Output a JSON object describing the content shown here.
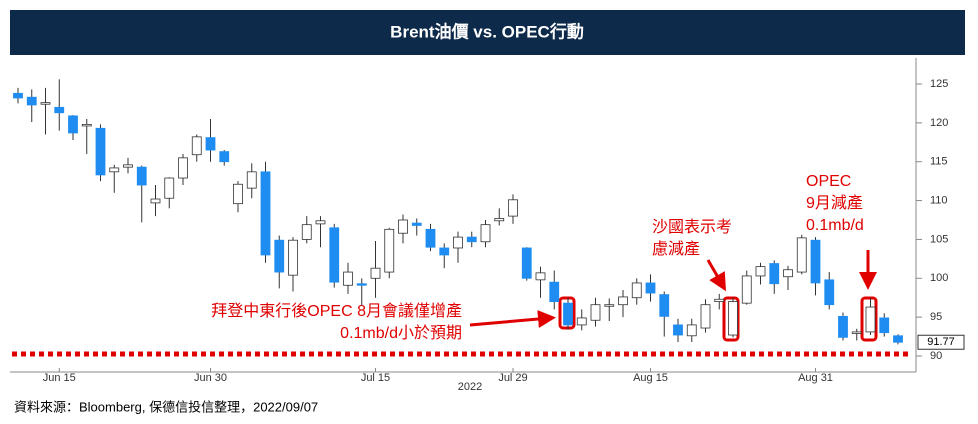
{
  "chart_data": {
    "type": "candlestick",
    "title": "Brent油價 vs. OPEC行動",
    "categories": [
      null,
      null,
      null,
      "Jun 15",
      null,
      null,
      null,
      null,
      null,
      null,
      null,
      null,
      null,
      null,
      "Jun 30",
      null,
      null,
      null,
      null,
      null,
      null,
      null,
      null,
      null,
      null,
      null,
      "Jul 15",
      null,
      null,
      null,
      null,
      null,
      null,
      null,
      null,
      null,
      "Jul 29",
      null,
      null,
      null,
      null,
      null,
      null,
      null,
      null,
      null,
      "Aug 15",
      null,
      null,
      null,
      null,
      null,
      null,
      null,
      null,
      null,
      null,
      null,
      "Aug 31",
      null,
      null,
      null,
      null,
      null,
      null
    ],
    "x_sublabel": "2022",
    "open": [
      123.8,
      123.3,
      122.4,
      122.0,
      120.9,
      119.6,
      119.3,
      113.7,
      114.3,
      114.3,
      109.7,
      110.3,
      112.9,
      115.9,
      118.1,
      116.3,
      109.6,
      111.6,
      113.7,
      104.9,
      100.4,
      105.0,
      107.0,
      106.5,
      99.1,
      99.3,
      100.0,
      100.8,
      105.8,
      107.1,
      106.3,
      103.9,
      103.9,
      105.3,
      104.7,
      107.4,
      108.0,
      103.9,
      99.8,
      99.5,
      96.8,
      94.0,
      94.6,
      96.4,
      96.6,
      97.5,
      99.4,
      97.9,
      94.0,
      92.6,
      93.6,
      97.0,
      92.7,
      96.8,
      100.3,
      101.9,
      100.2,
      100.8,
      104.9,
      99.8,
      95.1,
      92.9,
      93.1,
      94.9,
      92.6
    ],
    "high": [
      124.5,
      124.3,
      124.5,
      125.6,
      121.0,
      120.5,
      119.8,
      114.6,
      115.5,
      114.5,
      112.0,
      113.0,
      116.0,
      118.5,
      120.5,
      116.5,
      112.5,
      114.8,
      115.0,
      105.5,
      105.3,
      108.0,
      108.0,
      107.0,
      102.0,
      100.0,
      104.8,
      106.5,
      108.2,
      107.7,
      107.0,
      104.5,
      106.0,
      106.0,
      107.5,
      109.0,
      110.8,
      104.0,
      101.5,
      101.0,
      97.5,
      96.0,
      97.5,
      97.4,
      98.5,
      100.0,
      100.5,
      98.3,
      94.8,
      94.8,
      97.3,
      98.0,
      97.5,
      101.0,
      102.0,
      102.3,
      101.6,
      105.6,
      105.3,
      100.8,
      95.6,
      93.5,
      97.5,
      95.5,
      92.8
    ],
    "low": [
      122.5,
      120.1,
      118.5,
      119.0,
      117.8,
      116.0,
      112.5,
      111.0,
      113.5,
      107.2,
      108.0,
      109.0,
      112.0,
      115.0,
      115.0,
      114.5,
      108.5,
      110.3,
      102.0,
      98.7,
      98.3,
      104.5,
      104.0,
      98.8,
      98.0,
      96.5,
      97.5,
      100.0,
      104.5,
      105.5,
      103.5,
      101.3,
      102.0,
      104.0,
      104.0,
      106.8,
      107.0,
      99.7,
      97.5,
      96.0,
      93.4,
      93.3,
      93.8,
      94.5,
      95.0,
      96.6,
      97.0,
      92.5,
      91.8,
      91.8,
      93.0,
      96.0,
      92.4,
      96.6,
      99.2,
      98.0,
      98.5,
      100.5,
      97.8,
      96.0,
      92.0,
      92.0,
      92.7,
      92.5,
      91.5
    ],
    "close": [
      123.2,
      122.3,
      122.6,
      121.3,
      118.7,
      119.8,
      113.3,
      114.2,
      114.6,
      112.0,
      110.2,
      112.9,
      115.5,
      118.2,
      116.5,
      115.0,
      112.1,
      113.7,
      103.0,
      100.8,
      104.9,
      106.9,
      107.4,
      99.5,
      100.8,
      99.1,
      101.3,
      106.3,
      107.5,
      106.8,
      104.0,
      103.0,
      105.3,
      104.7,
      106.9,
      107.7,
      110.1,
      100.0,
      100.7,
      97.0,
      94.0,
      94.9,
      96.6,
      96.6,
      97.6,
      99.4,
      98.1,
      95.1,
      92.7,
      94.0,
      96.6,
      97.3,
      97.0,
      100.3,
      101.5,
      99.3,
      101.1,
      105.2,
      99.4,
      96.6,
      92.4,
      93.1,
      96.3,
      93.0,
      91.77
    ],
    "up_color": "#ffffff",
    "down_color": "#1e8cf0",
    "last_price": 91.77,
    "ylim": [
      88,
      128
    ],
    "yticks": [
      90,
      95,
      100,
      105,
      110,
      115,
      120,
      125
    ],
    "annotations": [
      "拜登中東行後OPEC 8月會議僅增產",
      "0.1mb/d小於預期",
      "沙國表示考",
      "慮減產",
      "OPEC",
      "9月減產",
      "0.1mb/d"
    ],
    "source": "資料來源：Bloomberg, 保德信投信整理，2022/09/07"
  }
}
